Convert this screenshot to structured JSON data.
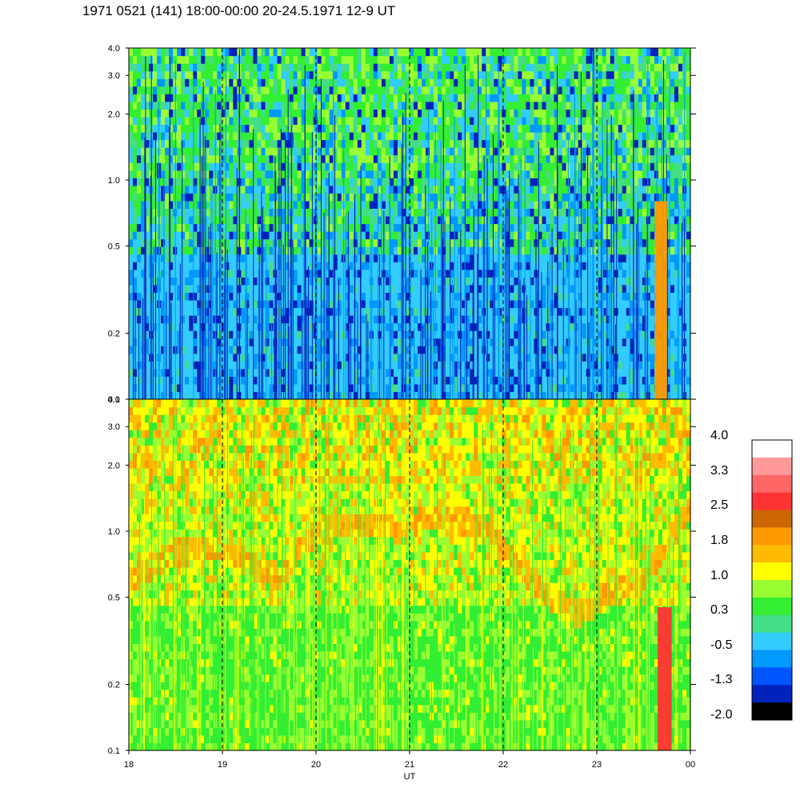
{
  "title": "1971 0521 (141) 18:00-00:00 20-24.5.1971  12-9 UT",
  "chart_data": [
    {
      "type": "heatmap",
      "panel": "upper",
      "xlabel": "",
      "ylabel": "",
      "xlim": [
        18,
        24
      ],
      "ylim": [
        0.1,
        4.0
      ],
      "yscale": "log",
      "yticks": [
        "0.1",
        "0.2",
        "0.5",
        "1.0",
        "2.0",
        "3.0",
        "4.0"
      ],
      "ytick_values": [
        0.1,
        0.2,
        0.5,
        1.0,
        2.0,
        3.0,
        4.0
      ],
      "vlines_dashed": [
        19,
        20,
        21,
        22,
        23
      ],
      "dominant_levels": {
        "below_0.5": "-0.5",
        "0.5_to_1.0": "0.3",
        "above_1.0": "0.3 to 1.0"
      },
      "features": [
        {
          "x": [
            23.62,
            23.75
          ],
          "y": [
            0.1,
            0.8
          ],
          "level": "1.8"
        }
      ]
    },
    {
      "type": "heatmap",
      "panel": "lower",
      "xlabel": "UT",
      "ylabel": "",
      "xlim": [
        18,
        24
      ],
      "ylim": [
        0.1,
        4.0
      ],
      "yscale": "log",
      "xticks": [
        "18",
        "19",
        "20",
        "21",
        "22",
        "23",
        "00"
      ],
      "xtick_values": [
        18,
        19,
        20,
        21,
        22,
        23,
        24
      ],
      "yticks": [
        "0.1",
        "0.2",
        "0.5",
        "1.0",
        "2.0",
        "3.0",
        "4.0"
      ],
      "ytick_values": [
        0.1,
        0.2,
        0.5,
        1.0,
        2.0,
        3.0,
        4.0
      ],
      "vlines_dashed": [
        19,
        20,
        21,
        22,
        23
      ],
      "dominant_levels": {
        "below_0.5": "0.3 to 1.0",
        "0.5_to_2.0": "1.0 to 1.8",
        "above_2.0": "1.0 to 1.8"
      },
      "features": [
        {
          "x": [
            23.65,
            23.8
          ],
          "y": [
            0.1,
            0.45
          ],
          "level": "2.5"
        }
      ]
    }
  ],
  "colorbar": {
    "labels": [
      "4.0",
      "3.3",
      "2.5",
      "1.8",
      "1.0",
      "0.3",
      "-0.5",
      "-1.3",
      "-2.0"
    ],
    "colors": [
      "#ffffff",
      "#ff9999",
      "#ff6666",
      "#ff3333",
      "#cc6600",
      "#ff9900",
      "#ffbb00",
      "#ffff00",
      "#99ff33",
      "#33ee33",
      "#44dd88",
      "#33ccff",
      "#0099ff",
      "#0055ff",
      "#0022bb",
      "#000000"
    ]
  }
}
